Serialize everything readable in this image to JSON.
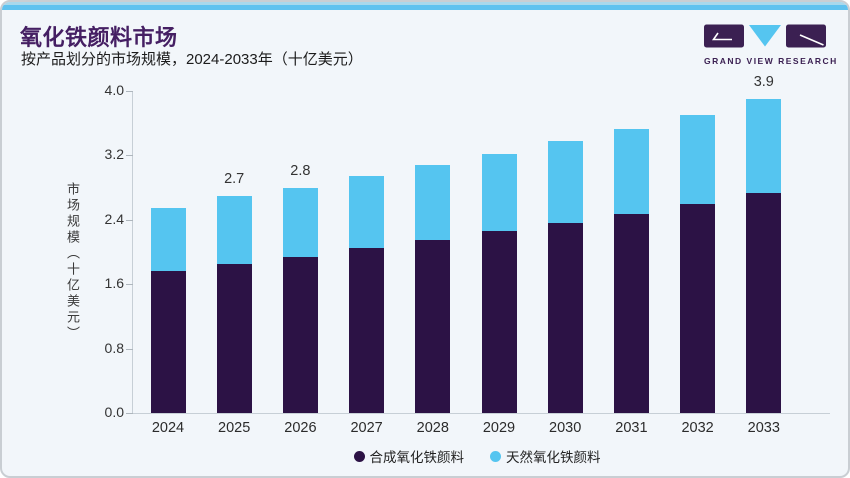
{
  "header": {
    "title": "氧化铁颜料市场",
    "subtitle": "按产品划分的市场规模，2024-2033年（十亿美元）"
  },
  "logo": {
    "wordmark": "GRAND VIEW RESEARCH",
    "purple": "#3b2052",
    "blue": "#55c5f0"
  },
  "colors": {
    "brand_purple": "#451f63",
    "accent_blue": "#5fc2ef",
    "card_background": "#f2f6fa",
    "synthetic_bar": "#2c1245",
    "natural_bar": "#55c5f0"
  },
  "chart_data": {
    "type": "bar",
    "stacked": true,
    "title": "氧化铁颜料市场",
    "subtitle": "按产品划分的市场规模，2024-2033年（十亿美元）",
    "categories": [
      "2024",
      "2025",
      "2026",
      "2027",
      "2028",
      "2029",
      "2030",
      "2031",
      "2032",
      "2033"
    ],
    "series": [
      {
        "name": "合成氧化铁颜料",
        "color": "#2c1245",
        "values": [
          1.76,
          1.85,
          1.94,
          2.05,
          2.15,
          2.26,
          2.36,
          2.47,
          2.6,
          2.73
        ]
      },
      {
        "name": "天然氧化铁颜料",
        "color": "#55c5f0",
        "values": [
          0.79,
          0.85,
          0.86,
          0.89,
          0.93,
          0.96,
          1.02,
          1.06,
          1.1,
          1.17
        ]
      }
    ],
    "totals": [
      2.55,
      2.7,
      2.8,
      2.94,
      3.08,
      3.22,
      3.38,
      3.53,
      3.7,
      3.9
    ],
    "bar_value_labels": [
      "",
      "2.7",
      "2.8",
      "",
      "",
      "",
      "",
      "",
      "",
      "3.9"
    ],
    "xlabel": "",
    "ylabel": "市场规模（十亿美元）",
    "ylim": [
      0.0,
      4.0
    ],
    "yticks": [
      "0.0",
      "0.8",
      "1.6",
      "2.4",
      "3.2",
      "4.0"
    ],
    "grid": false,
    "legend_position": "bottom"
  }
}
